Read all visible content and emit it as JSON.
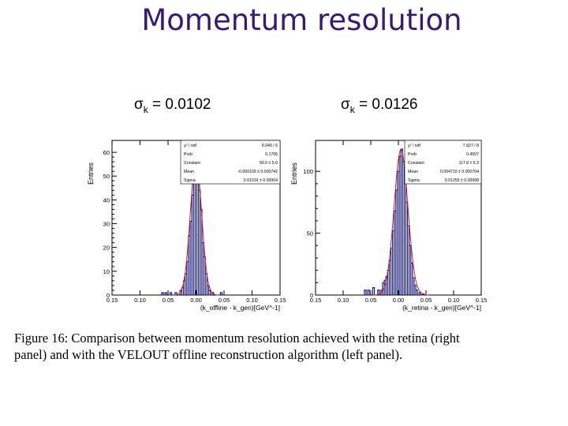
{
  "title": "Momentum resolution",
  "left_sigma": {
    "symbol": "σ",
    "sub": "k",
    "value": "= 0.0102"
  },
  "right_sigma": {
    "symbol": "σ",
    "sub": "k",
    "value": "= 0.0126"
  },
  "caption": {
    "line1": "Figure 16:  Comparison between momentum resolution achieved with the retina (right",
    "line2": "panel) and with the VELOUT offline reconstruction algorithm (left panel)."
  },
  "chart_data": [
    {
      "type": "histogram",
      "panel": "left",
      "ylabel": "Entries",
      "xlabel": "(k_offline - k_gen)[GeV^-1]",
      "xlim": [
        -0.15,
        0.15
      ],
      "ylim": [
        0,
        65
      ],
      "x_tick_labels": [
        "0.15",
        "0.10",
        "0.05",
        "0.00",
        "0.05",
        "0.10",
        "0.15"
      ],
      "y_tick_labels": [
        "0",
        "10",
        "20",
        "30",
        "40",
        "50",
        "60"
      ],
      "stats_box": [
        {
          "label": "χ² / ndf",
          "value": "9.049 / 6"
        },
        {
          "label": "Prob",
          "value": "0.1706"
        },
        {
          "label": "Constant",
          "value": "56.5 ± 5.0"
        },
        {
          "label": "Mean",
          "value": "-0.000109 ± 0.000742"
        },
        {
          "label": "Sigma",
          "value": "0.01016 ± 0.00064"
        }
      ],
      "histogram": {
        "bin_width": 0.003,
        "bins": [
          {
            "x": -0.06,
            "y": 1
          },
          {
            "x": -0.054,
            "y": 1
          },
          {
            "x": -0.045,
            "y": 1
          },
          {
            "x": -0.036,
            "y": 1
          },
          {
            "x": -0.027,
            "y": 2
          },
          {
            "x": -0.024,
            "y": 3
          },
          {
            "x": -0.021,
            "y": 6
          },
          {
            "x": -0.018,
            "y": 9
          },
          {
            "x": -0.015,
            "y": 14
          },
          {
            "x": -0.012,
            "y": 25
          },
          {
            "x": -0.009,
            "y": 31
          },
          {
            "x": -0.006,
            "y": 42
          },
          {
            "x": -0.003,
            "y": 57
          },
          {
            "x": 0.0,
            "y": 60
          },
          {
            "x": 0.003,
            "y": 53
          },
          {
            "x": 0.006,
            "y": 44
          },
          {
            "x": 0.009,
            "y": 36
          },
          {
            "x": 0.012,
            "y": 22
          },
          {
            "x": 0.015,
            "y": 16
          },
          {
            "x": 0.018,
            "y": 9
          },
          {
            "x": 0.021,
            "y": 4
          },
          {
            "x": 0.024,
            "y": 2
          },
          {
            "x": 0.03,
            "y": 1
          },
          {
            "x": 0.045,
            "y": 1
          }
        ]
      },
      "fit": {
        "model": "gaussian",
        "constant": 56.5,
        "mean": -0.000109,
        "sigma": 0.01016
      },
      "colors": {
        "histogram": "#1a1a7a",
        "fit": "#cc2222"
      }
    },
    {
      "type": "histogram",
      "panel": "right",
      "ylabel": "Entries",
      "xlabel": "(k_retina - k_gen)[GeV^-1]",
      "xlim": [
        -0.15,
        0.15
      ],
      "ylim": [
        0,
        125
      ],
      "x_tick_labels": [
        "0.15",
        "0.10",
        "0.05",
        "0.00",
        "0.05",
        "0.10",
        "0.15"
      ],
      "y_tick_labels": [
        "0",
        "50",
        "100"
      ],
      "stats_box": [
        {
          "label": "χ² / ndf",
          "value": "7.827 / 8"
        },
        {
          "label": "Prob",
          "value": "0.4507"
        },
        {
          "label": "Constant",
          "value": "117.8 ± 5.3"
        },
        {
          "label": "Mean",
          "value": "0.004715 ± 0.000704"
        },
        {
          "label": "Sigma",
          "value": "0.01255 ± 0.00068"
        }
      ],
      "histogram": {
        "bin_width": 0.003,
        "bins": [
          {
            "x": -0.06,
            "y": 4
          },
          {
            "x": -0.054,
            "y": 4
          },
          {
            "x": -0.045,
            "y": 6
          },
          {
            "x": -0.036,
            "y": 4
          },
          {
            "x": -0.03,
            "y": 4
          },
          {
            "x": -0.027,
            "y": 10
          },
          {
            "x": -0.024,
            "y": 12
          },
          {
            "x": -0.021,
            "y": 15
          },
          {
            "x": -0.018,
            "y": 20
          },
          {
            "x": -0.015,
            "y": 28
          },
          {
            "x": -0.012,
            "y": 38
          },
          {
            "x": -0.009,
            "y": 52
          },
          {
            "x": -0.006,
            "y": 68
          },
          {
            "x": -0.003,
            "y": 85
          },
          {
            "x": 0.0,
            "y": 100
          },
          {
            "x": 0.003,
            "y": 112
          },
          {
            "x": 0.006,
            "y": 118
          },
          {
            "x": 0.009,
            "y": 108
          },
          {
            "x": 0.012,
            "y": 95
          },
          {
            "x": 0.015,
            "y": 75
          },
          {
            "x": 0.018,
            "y": 56
          },
          {
            "x": 0.021,
            "y": 40
          },
          {
            "x": 0.024,
            "y": 26
          },
          {
            "x": 0.027,
            "y": 14
          },
          {
            "x": 0.03,
            "y": 8
          },
          {
            "x": 0.033,
            "y": 4
          },
          {
            "x": 0.039,
            "y": 2
          },
          {
            "x": 0.045,
            "y": 1
          }
        ]
      },
      "fit": {
        "model": "gaussian",
        "constant": 117.8,
        "mean": 0.004715,
        "sigma": 0.01255
      },
      "colors": {
        "histogram": "#1a1a7a",
        "fit": "#cc2222"
      }
    }
  ]
}
